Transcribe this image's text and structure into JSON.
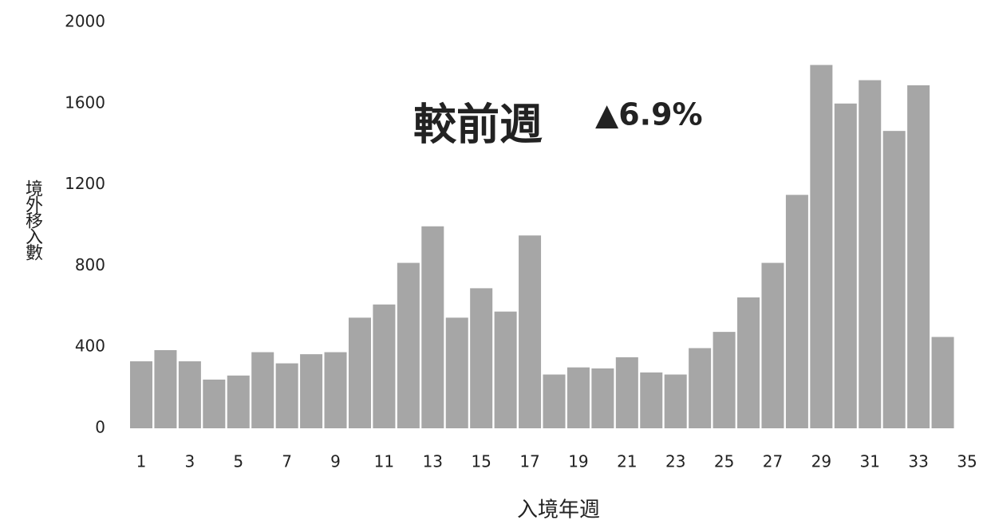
{
  "chart_data": {
    "type": "bar",
    "y_label": "境外移入數",
    "x_label": "入境年週",
    "annotations": [
      "較前週",
      "▲6.9%"
    ],
    "categories": [
      1,
      null,
      3,
      null,
      5,
      null,
      7,
      null,
      9,
      null,
      11,
      null,
      13,
      null,
      15,
      null,
      17,
      null,
      19,
      null,
      21,
      null,
      23,
      null,
      25,
      null,
      27,
      null,
      29,
      null,
      31,
      null,
      33,
      null,
      35
    ],
    "values": [
      330,
      385,
      330,
      240,
      260,
      375,
      320,
      365,
      375,
      545,
      610,
      815,
      995,
      545,
      690,
      575,
      950,
      265,
      300,
      295,
      350,
      275,
      265,
      395,
      475,
      645,
      815,
      1150,
      1790,
      1600,
      1715,
      1465,
      1690,
      450,
      null
    ],
    "color": "#a6a6a6",
    "annotation_color": "#1f1fc8",
    "ylim": [
      0,
      2000
    ],
    "yticks": [
      0,
      400,
      800,
      1200,
      1600,
      2000
    ],
    "grid": false
  }
}
